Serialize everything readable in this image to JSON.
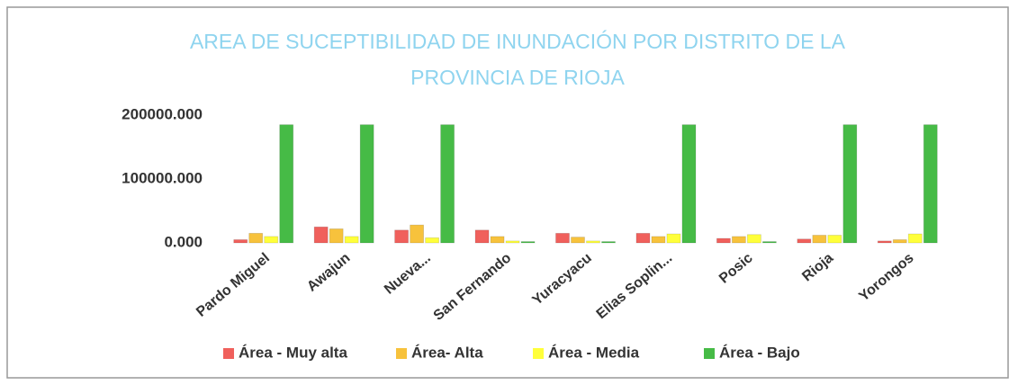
{
  "chart_data": {
    "type": "bar",
    "title": "AREA DE SUCEPTIBILIDAD DE INUNDACIÓN  POR DISTRITO DE LA",
    "subtitle": "PROVINCIA DE RIOJA",
    "categories": [
      "Pardo Miguel",
      "Awajun",
      "Nueva...",
      "San Fernando",
      "Yuracyacu",
      "Elias Soplin...",
      "Posic",
      "Rioja",
      "Yorongos"
    ],
    "series": [
      {
        "name": "Área - Muy alta",
        "color": "#f0605c",
        "values": [
          5000,
          25000,
          20000,
          20000,
          15000,
          15000,
          7000,
          6000,
          3000
        ]
      },
      {
        "name": "Área- Alta",
        "color": "#f7c23c",
        "values": [
          15000,
          22000,
          28000,
          10000,
          9000,
          10000,
          10000,
          12000,
          5000
        ]
      },
      {
        "name": "Área - Media",
        "color": "#ffff3a",
        "values": [
          10000,
          10000,
          8000,
          3000,
          3000,
          14000,
          13000,
          12000,
          14000
        ]
      },
      {
        "name": "Área - Bajo",
        "color": "#46bb46",
        "values": [
          185000,
          185000,
          185000,
          2000,
          2000,
          185000,
          2000,
          185000,
          185000
        ]
      }
    ],
    "ylim": [
      0,
      200000
    ],
    "yticks": [
      {
        "value": 0,
        "label": "0.000"
      },
      {
        "value": 100000,
        "label": "100000.000"
      },
      {
        "value": 200000,
        "label": "200000.000"
      }
    ],
    "grid": false,
    "legend": "bottom"
  }
}
